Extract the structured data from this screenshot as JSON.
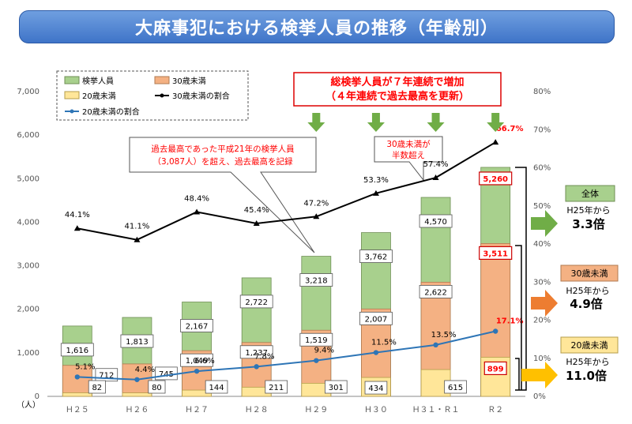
{
  "title": "大麻事犯における検挙人員の推移（年齢別）",
  "colors": {
    "total": "#a8d08d",
    "under30": "#f4b183",
    "under20": "#ffe699",
    "line30": "#000000",
    "line20": "#2e75b6",
    "arrow": "#70ad47",
    "accent_red": "#ff0000",
    "orange": "#ed7d31",
    "yellow": "#ffc000"
  },
  "legend": {
    "total": "検挙人員",
    "under30": "30歳未満",
    "under20": "20歳未満",
    "ratio30": "30歳未満の割合",
    "ratio20": "20歳未満の割合"
  },
  "annotations": {
    "headline_line1": "総検挙人員が７年連続で増加",
    "headline_line2": "（４年連続で過去最高を更新）",
    "callout_record_line1": "過去最高であった平成21年の検挙人員",
    "callout_record_line2": "（3,087人）を超え、過去最高を記録",
    "callout_half_line1": "30歳未満が",
    "callout_half_line2": "半数超え"
  },
  "side_panels": [
    {
      "label": "全体",
      "sub": "H25年から",
      "value": "3.3倍"
    },
    {
      "label": "30歳未満",
      "sub": "H25年から",
      "value": "4.9倍"
    },
    {
      "label": "20歳未満",
      "sub": "H25年から",
      "value": "11.0倍"
    }
  ],
  "y_unit": "（人）",
  "chart_data": {
    "type": "bar",
    "categories": [
      "Ｈ２５",
      "Ｈ２６",
      "Ｈ２７",
      "Ｈ２８",
      "Ｈ２９",
      "Ｈ３０",
      "Ｈ３１・Ｒ１",
      "Ｒ２"
    ],
    "series": [
      {
        "name": "検挙人員",
        "values": [
          1616,
          1813,
          2167,
          2722,
          3218,
          3762,
          4570,
          5260
        ]
      },
      {
        "name": "30歳未満",
        "values": [
          712,
          745,
          1049,
          1237,
          1519,
          2007,
          2622,
          3511
        ]
      },
      {
        "name": "20歳未満",
        "values": [
          82,
          80,
          144,
          211,
          301,
          434,
          615,
          899
        ]
      }
    ],
    "value_labels": {
      "total": [
        "1,616",
        "1,813",
        "2,167",
        "2,722",
        "3,218",
        "3,762",
        "4,570",
        "5,260"
      ],
      "under30": [
        "712",
        "745",
        "1,049",
        "1,237",
        "1,519",
        "2,007",
        "2,622",
        "3,511"
      ],
      "under20": [
        "82",
        "80",
        "144",
        "211",
        "301",
        "434",
        "615",
        "899"
      ]
    },
    "lines": [
      {
        "name": "30歳未満の割合",
        "values": [
          44.1,
          41.1,
          48.4,
          45.4,
          47.2,
          53.3,
          57.4,
          66.7
        ],
        "labels": [
          "44.1%",
          "41.1%",
          "48.4%",
          "45.4%",
          "47.2%",
          "53.3%",
          "57.4%",
          "66.7%"
        ]
      },
      {
        "name": "20歳未満の割合",
        "values": [
          5.1,
          4.4,
          6.6,
          7.8,
          9.4,
          11.5,
          13.5,
          17.1
        ],
        "labels": [
          "5.1%",
          "4.4%",
          "6.6%",
          "7.8%",
          "9.4%",
          "11.5%",
          "13.5%",
          "17.1%"
        ]
      }
    ],
    "y_left": {
      "min": 0,
      "max": 7000,
      "ticks": [
        "0",
        "1,000",
        "2,000",
        "3,000",
        "4,000",
        "5,000",
        "6,000",
        "7,000"
      ]
    },
    "y_right": {
      "min": 0,
      "max": 80,
      "ticks": [
        "0%",
        "10%",
        "20%",
        "30%",
        "40%",
        "50%",
        "60%",
        "70%",
        "80%"
      ]
    },
    "grid": false,
    "legend_position": "top-left"
  }
}
